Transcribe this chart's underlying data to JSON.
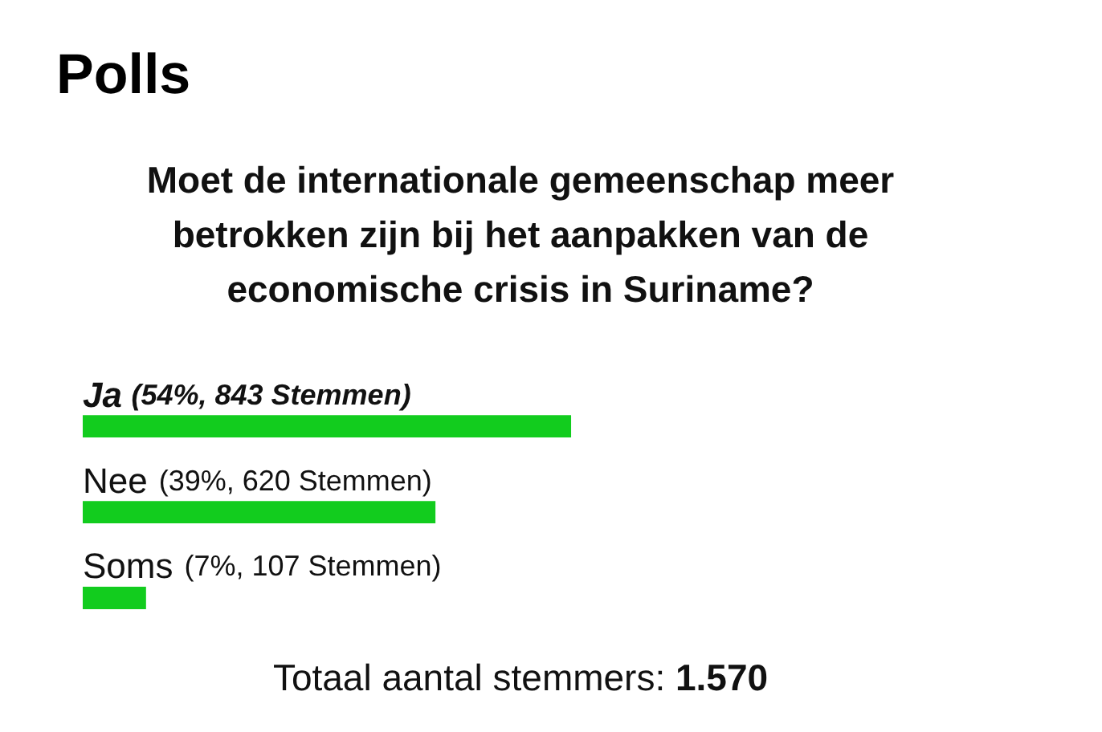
{
  "chart_data": {
    "type": "bar",
    "orientation": "horizontal",
    "title": "Polls",
    "subtitle": "Moet de internationale gemeenschap meer betrokken zijn bij het aanpakken van de economische crisis in Suriname?",
    "categories": [
      "Ja",
      "Nee",
      "Soms"
    ],
    "values": [
      54,
      39,
      7
    ],
    "value_labels": [
      "(54%, 843 Stemmen)",
      "(39%, 620 Stemmen)",
      "(7%, 107 Stemmen)"
    ],
    "color": "#12cc1e",
    "tick_labels": "y",
    "annotations": [
      "Totaal aantal stemmers: 1.570"
    ]
  }
}
